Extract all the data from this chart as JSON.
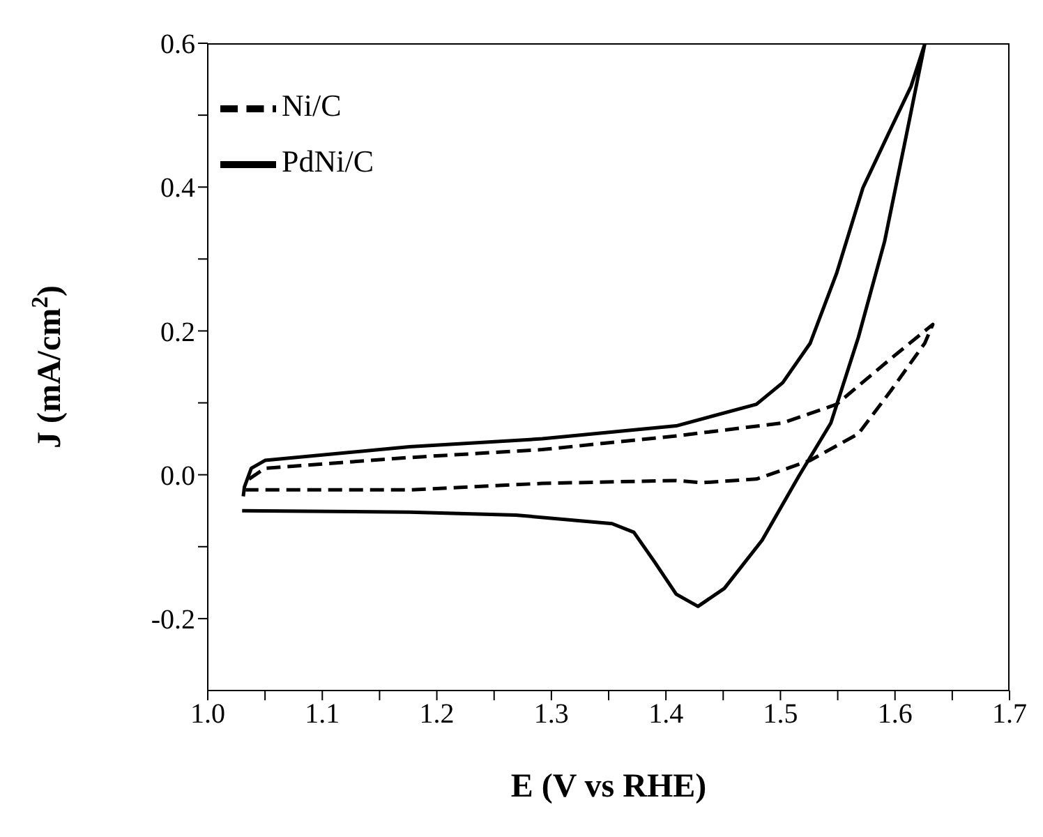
{
  "chart_data": {
    "type": "line",
    "xlabel": "E (V vs RHE)",
    "ylabel": "J (mA/cm$^{2}$)",
    "xlim": [
      1.0,
      1.7
    ],
    "xticks": [
      {
        "value": 1.0,
        "label": "1.0"
      },
      {
        "value": 1.05,
        "label": null
      },
      1.1,
      {
        "value": 1.15,
        "label": null
      },
      1.2,
      {
        "value": 1.25,
        "label": null
      },
      1.3,
      {
        "value": 1.35,
        "label": null
      },
      1.4,
      {
        "value": 1.45,
        "label": null
      },
      1.5,
      {
        "value": 1.55,
        "label": null
      },
      1.6,
      {
        "value": 1.65,
        "label": null
      },
      1.7
    ],
    "ylim": [
      -0.3,
      0.6
    ],
    "yticks": [
      -0.2,
      {
        "value": -0.1,
        "label": null
      },
      {
        "value": 0,
        "label": "0.0"
      },
      {
        "value": 0.1,
        "label": null
      },
      0.2,
      {
        "value": 0.3,
        "label": null
      },
      0.4,
      {
        "value": 0.5,
        "label": null
      },
      0.6
    ],
    "grid": false,
    "legend": "top left",
    "marker": "none",
    "series": [
      {
        "name": "Ni/C",
        "color": "#000000",
        "line_style": "dashed",
        "x": [
          1.036,
          1.05,
          1.176,
          1.292,
          1.409,
          1.502,
          1.549,
          1.596,
          1.633,
          1.626,
          1.596,
          1.568,
          1.526,
          1.479,
          1.432,
          1.409,
          1.292,
          1.176,
          1.033
        ],
        "values": [
          -0.006,
          0.009,
          0.024,
          0.035,
          0.054,
          0.072,
          0.098,
          0.161,
          0.209,
          0.183,
          0.116,
          0.057,
          0.02,
          -0.006,
          -0.011,
          -0.008,
          -0.012,
          -0.021,
          -0.021
        ]
      },
      {
        "name": "PdNi/C",
        "color": "#000000",
        "line_style": "solid",
        "x": [
          1.031,
          1.032,
          1.038,
          1.05,
          1.176,
          1.292,
          1.409,
          1.479,
          1.502,
          1.526,
          1.549,
          1.572,
          1.596,
          1.614,
          1.626,
          1.61,
          1.591,
          1.568,
          1.544,
          1.516,
          1.484,
          1.451,
          1.428,
          1.409,
          1.39,
          1.372,
          1.353,
          1.269,
          1.176,
          1.03
        ],
        "values": [
          -0.03,
          -0.017,
          0.009,
          0.02,
          0.039,
          0.05,
          0.068,
          0.098,
          0.128,
          0.183,
          0.28,
          0.399,
          0.48,
          0.54,
          0.599,
          0.473,
          0.325,
          0.191,
          0.072,
          -0.002,
          -0.091,
          -0.158,
          -0.183,
          -0.166,
          -0.121,
          -0.08,
          -0.068,
          -0.056,
          -0.052,
          -0.05
        ]
      }
    ]
  }
}
